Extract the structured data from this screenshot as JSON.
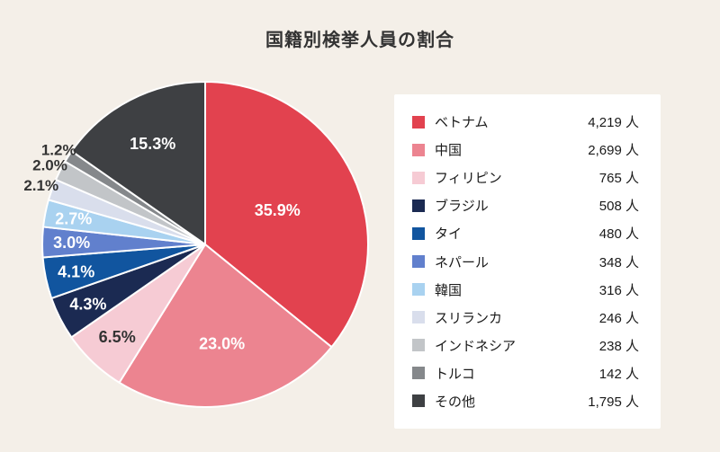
{
  "title": "国籍別検挙人員の割合",
  "colors": {
    "background": "#F4EFE8",
    "legend_panel_bg": "#FFFFFF",
    "title_text": "#333333",
    "slice_divider": "#FFFFFF",
    "outside_label_text": "#333333"
  },
  "unit": "人",
  "chart_data": {
    "type": "pie",
    "title": "国籍別検挙人員の割合",
    "start_angle_deg": 0,
    "direction": "clockwise",
    "legend_position": "right",
    "items": [
      {
        "label": "ベトナム",
        "value": 4219,
        "value_text": "4,219 人",
        "pct": 35.9,
        "pct_text": "35.9%",
        "color": "#E2424F",
        "pct_label_placement": "inside",
        "pct_label_color": "#FFFFFF"
      },
      {
        "label": "中国",
        "value": 2699,
        "value_text": "2,699 人",
        "pct": 23.0,
        "pct_text": "23.0%",
        "color": "#EC8490",
        "pct_label_placement": "inside",
        "pct_label_color": "#FFFFFF"
      },
      {
        "label": "フィリピン",
        "value": 765,
        "value_text": "765 人",
        "pct": 6.5,
        "pct_text": "6.5%",
        "color": "#F6CBD4",
        "pct_label_placement": "inside",
        "pct_label_color": "#333333"
      },
      {
        "label": "ブラジル",
        "value": 508,
        "value_text": "508 人",
        "pct": 4.3,
        "pct_text": "4.3%",
        "color": "#1B2A52",
        "pct_label_placement": "inside",
        "pct_label_color": "#FFFFFF"
      },
      {
        "label": "タイ",
        "value": 480,
        "value_text": "480 人",
        "pct": 4.1,
        "pct_text": "4.1%",
        "color": "#11559F",
        "pct_label_placement": "inside",
        "pct_label_color": "#FFFFFF"
      },
      {
        "label": "ネパール",
        "value": 348,
        "value_text": "348 人",
        "pct": 3.0,
        "pct_text": "3.0%",
        "color": "#6180CD",
        "pct_label_placement": "inside",
        "pct_label_color": "#FFFFFF"
      },
      {
        "label": "韓国",
        "value": 316,
        "value_text": "316 人",
        "pct": 2.7,
        "pct_text": "2.7%",
        "color": "#A9D2F0",
        "pct_label_placement": "inside",
        "pct_label_color": "#FFFFFF"
      },
      {
        "label": "スリランカ",
        "value": 246,
        "value_text": "246 人",
        "pct": 2.1,
        "pct_text": "2.1%",
        "color": "#D9DEEC",
        "pct_label_placement": "outside",
        "pct_label_color": "#333333"
      },
      {
        "label": "インドネシア",
        "value": 238,
        "value_text": "238 人",
        "pct": 2.0,
        "pct_text": "2.0%",
        "color": "#C2C5C8",
        "pct_label_placement": "outside",
        "pct_label_color": "#333333"
      },
      {
        "label": "トルコ",
        "value": 142,
        "value_text": "142 人",
        "pct": 1.2,
        "pct_text": "1.2%",
        "color": "#85888B",
        "pct_label_placement": "outside",
        "pct_label_color": "#333333"
      },
      {
        "label": "その他",
        "value": 1795,
        "value_text": "1,795 人",
        "pct": 15.3,
        "pct_text": "15.3%",
        "color": "#3E4043",
        "pct_label_placement": "inside",
        "pct_label_color": "#FFFFFF"
      }
    ]
  }
}
